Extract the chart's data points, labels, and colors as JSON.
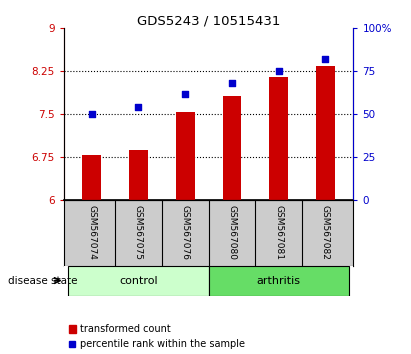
{
  "title": "GDS5243 / 10515431",
  "categories": [
    "GSM567074",
    "GSM567075",
    "GSM567076",
    "GSM567080",
    "GSM567081",
    "GSM567082"
  ],
  "bar_values": [
    6.78,
    6.87,
    7.53,
    7.82,
    8.15,
    8.35
  ],
  "scatter_values": [
    50,
    54,
    62,
    68,
    75,
    82
  ],
  "ylim_left": [
    6,
    9
  ],
  "ylim_right": [
    0,
    100
  ],
  "yticks_left": [
    6,
    6.75,
    7.5,
    8.25,
    9
  ],
  "yticks_right": [
    0,
    25,
    50,
    75,
    100
  ],
  "ytick_labels_left": [
    "6",
    "6.75",
    "7.5",
    "8.25",
    "9"
  ],
  "ytick_labels_right": [
    "0",
    "25",
    "50",
    "75",
    "100%"
  ],
  "bar_color": "#cc0000",
  "scatter_color": "#0000cc",
  "bar_bottom": 6,
  "groups": [
    {
      "label": "control",
      "indices": [
        0,
        1,
        2
      ],
      "color": "#ccffcc"
    },
    {
      "label": "arthritis",
      "indices": [
        3,
        4,
        5
      ],
      "color": "#66dd66"
    }
  ],
  "disease_state_label": "disease state",
  "legend_bar_label": "transformed count",
  "legend_scatter_label": "percentile rank within the sample",
  "tick_label_area_color": "#cccccc",
  "bar_width": 0.4
}
